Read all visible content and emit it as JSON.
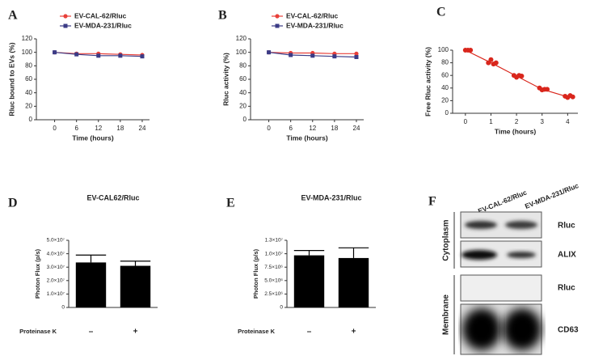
{
  "chart_data": [
    {
      "type": "line",
      "panel": "A",
      "ylabel": "Rluc bound to EVs (%)",
      "xlabel": "Time (hours)",
      "x": [
        0,
        6,
        12,
        18,
        24
      ],
      "xlim": [
        -5,
        26
      ],
      "xticks": [
        0,
        6,
        12,
        18,
        24
      ],
      "ylim": [
        0,
        120
      ],
      "yticks": [
        0,
        20,
        40,
        60,
        80,
        100,
        120
      ],
      "series": [
        {
          "name": "EV-CAL-62/Rluc",
          "color": "#e8403a",
          "marker": "circle",
          "values": [
            100,
            98,
            98,
            97,
            96
          ]
        },
        {
          "name": "EV-MDA-231/Rluc",
          "color": "#3b3b86",
          "marker": "square",
          "values": [
            100,
            97,
            95,
            95,
            94
          ]
        }
      ]
    },
    {
      "type": "line",
      "panel": "B",
      "ylabel": "Rluc activity (%)",
      "xlabel": "Time (hours)",
      "x": [
        0,
        6,
        12,
        18,
        24
      ],
      "xlim": [
        -5,
        26
      ],
      "xticks": [
        0,
        6,
        12,
        18,
        24
      ],
      "ylim": [
        0,
        120
      ],
      "yticks": [
        0,
        20,
        40,
        60,
        80,
        100,
        120
      ],
      "series": [
        {
          "name": "EV-CAL-62/Rluc",
          "color": "#e8403a",
          "marker": "circle",
          "values": [
            100,
            99,
            99,
            98,
            98
          ]
        },
        {
          "name": "EV-MDA-231/Rluc",
          "color": "#3b3b86",
          "marker": "square",
          "values": [
            100,
            96,
            95,
            94,
            93
          ]
        }
      ]
    },
    {
      "type": "scatter",
      "panel": "C",
      "ylabel": "Free Rluc activity (%)",
      "xlabel": "Time (hours)",
      "x": [
        0,
        0.1,
        0.2,
        0.9,
        1,
        1.1,
        1.2,
        1.9,
        2,
        2.1,
        2.2,
        2.9,
        3,
        3.1,
        3.2,
        3.9,
        4,
        4.1,
        4.2
      ],
      "values": [
        100,
        100,
        100,
        80,
        85,
        78,
        80,
        60,
        57,
        60,
        59,
        40,
        37,
        38,
        38,
        27,
        25,
        28,
        26
      ],
      "fit": {
        "x": [
          0,
          1,
          2,
          3,
          4
        ],
        "values": [
          100,
          80,
          59,
          38,
          26
        ]
      },
      "color": "#d9261c",
      "xlim": [
        -0.5,
        4.4
      ],
      "xticks": [
        0,
        1,
        2,
        3,
        4
      ],
      "ylim": [
        0,
        100
      ],
      "yticks": [
        0,
        20,
        40,
        60,
        80,
        100
      ]
    },
    {
      "type": "bar",
      "panel": "D",
      "title": "EV-CAL62/Rluc",
      "ylabel": "Photon Flux (p/s)",
      "xlabel": "Proteinase K",
      "categories": [
        "–",
        "+"
      ],
      "values": [
        33500000,
        31000000
      ],
      "errors": [
        5500000,
        3500000
      ],
      "color": "#000000",
      "ylim": [
        0,
        50000000
      ],
      "yticks": [
        0,
        {
          "value": 10000000,
          "label": "1.0×10⁷"
        },
        {
          "value": 20000000,
          "label": "2.0×10⁷"
        },
        {
          "value": 30000000,
          "label": "3.0×10⁷"
        },
        {
          "value": 40000000,
          "label": "4.0×10⁷"
        },
        {
          "value": 50000000,
          "label": "5.0×10⁷"
        }
      ]
    },
    {
      "type": "bar",
      "panel": "E",
      "title": "EV-MDA-231/Rluc",
      "ylabel": "Photon Flux (p/s)",
      "xlabel": "Proteinase K",
      "categories": [
        "–",
        "+"
      ],
      "values": [
        9700000,
        9200000
      ],
      "errors": [
        900000,
        1900000
      ],
      "color": "#000000",
      "ylim": [
        0,
        12500000
      ],
      "yticks": [
        0,
        {
          "value": 2500000,
          "label": "2.5×10⁶"
        },
        {
          "value": 5000000,
          "label": "5.0×10⁶"
        },
        {
          "value": 7500000,
          "label": "7.5×10⁶"
        },
        {
          "value": 10000000,
          "label": "1.0×10⁷"
        },
        {
          "value": 12500000,
          "label": "1.3×10⁷"
        }
      ]
    }
  ],
  "blot": {
    "panel": "F",
    "columns": [
      "EV-CAL-62/Rluc",
      "EV-MDA-231/Rluc"
    ],
    "groups": [
      {
        "name": "Cytoplasm",
        "rows": [
          "Rluc",
          "ALIX"
        ]
      },
      {
        "name": "Membrane",
        "rows": [
          "Rluc",
          "CD63"
        ]
      }
    ]
  }
}
